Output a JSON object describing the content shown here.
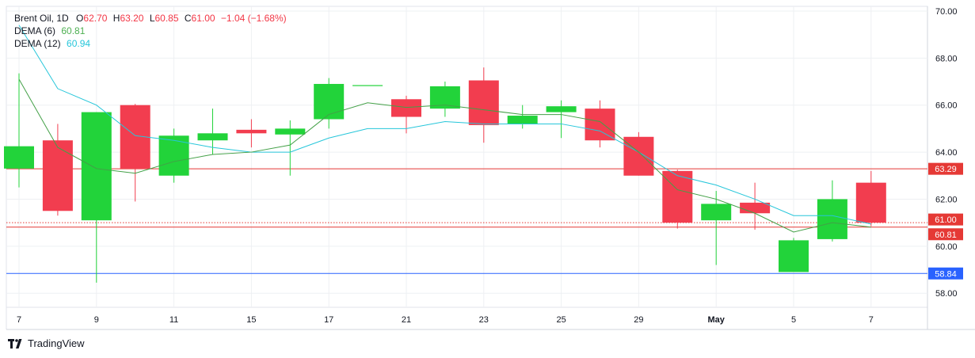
{
  "legend": {
    "symbol": "Brent Oil, 1D",
    "o_label": "O",
    "o_value": "62.70",
    "h_label": "H",
    "h_value": "63.20",
    "l_label": "L",
    "l_value": "60.85",
    "c_label": "C",
    "c_value": "61.00",
    "change": "−1.04 (−1.68%)",
    "dema6_label": "DEMA (6)",
    "dema6_value": "60.81",
    "dema12_label": "DEMA (12)",
    "dema12_value": "60.94"
  },
  "brand": {
    "name": "TradingView",
    "icon": "tradingview-logo-icon"
  },
  "colors": {
    "up": "#22d33a",
    "down": "#f23d4f",
    "dema6": "#43a047",
    "dema12": "#26c6da",
    "grid": "#eef0f3",
    "axis_text": "#131722",
    "hline_red": "#e53935",
    "hline_blue": "#2962ff"
  },
  "chart_data": {
    "type": "candlestick",
    "y_range": [
      57.4,
      70.2
    ],
    "y_ticks": [
      "58.00",
      "60.00",
      "62.00",
      "64.00",
      "66.00",
      "68.00",
      "70.00"
    ],
    "x_ticks": [
      {
        "idx": 0,
        "label": "7"
      },
      {
        "idx": 2,
        "label": "9"
      },
      {
        "idx": 4,
        "label": "11"
      },
      {
        "idx": 6,
        "label": "15"
      },
      {
        "idx": 8,
        "label": "17"
      },
      {
        "idx": 10,
        "label": "21"
      },
      {
        "idx": 12,
        "label": "23"
      },
      {
        "idx": 14,
        "label": "25"
      },
      {
        "idx": 16,
        "label": "29"
      },
      {
        "idx": 18,
        "label": "May"
      },
      {
        "idx": 20,
        "label": "5"
      },
      {
        "idx": 22,
        "label": "7"
      }
    ],
    "candles": [
      {
        "o": 63.3,
        "h": 67.35,
        "l": 62.5,
        "c": 64.25
      },
      {
        "o": 64.5,
        "h": 65.2,
        "l": 61.3,
        "c": 61.5
      },
      {
        "o": 61.1,
        "h": 65.7,
        "l": 58.45,
        "c": 65.7
      },
      {
        "o": 66.0,
        "h": 66.05,
        "l": 61.9,
        "c": 63.3
      },
      {
        "o": 63.0,
        "h": 65.0,
        "l": 62.7,
        "c": 64.7
      },
      {
        "o": 64.5,
        "h": 65.85,
        "l": 63.9,
        "c": 64.8
      },
      {
        "o": 64.95,
        "h": 65.4,
        "l": 64.2,
        "c": 64.8
      },
      {
        "o": 64.75,
        "h": 65.35,
        "l": 63.0,
        "c": 65.0
      },
      {
        "o": 65.4,
        "h": 67.15,
        "l": 65.0,
        "c": 66.9
      },
      {
        "o": 66.85,
        "h": 66.85,
        "l": 66.85,
        "c": 66.85
      },
      {
        "o": 66.25,
        "h": 66.4,
        "l": 64.8,
        "c": 65.5
      },
      {
        "o": 65.85,
        "h": 67.0,
        "l": 65.5,
        "c": 66.8
      },
      {
        "o": 67.05,
        "h": 67.6,
        "l": 64.4,
        "c": 65.15
      },
      {
        "o": 65.2,
        "h": 66.0,
        "l": 65.0,
        "c": 65.55
      },
      {
        "o": 65.7,
        "h": 66.2,
        "l": 64.6,
        "c": 65.95
      },
      {
        "o": 65.85,
        "h": 66.2,
        "l": 64.2,
        "c": 64.5
      },
      {
        "o": 64.65,
        "h": 64.85,
        "l": 63.0,
        "c": 63.0
      },
      {
        "o": 63.2,
        "h": 63.25,
        "l": 60.75,
        "c": 61.0
      },
      {
        "o": 61.1,
        "h": 62.35,
        "l": 59.2,
        "c": 61.8
      },
      {
        "o": 61.85,
        "h": 62.7,
        "l": 60.7,
        "c": 61.4
      },
      {
        "o": 58.9,
        "h": 60.35,
        "l": 58.9,
        "c": 60.25
      },
      {
        "o": 60.3,
        "h": 62.8,
        "l": 60.2,
        "c": 62.0
      },
      {
        "o": 62.7,
        "h": 63.2,
        "l": 60.85,
        "c": 61.0
      }
    ],
    "dema6": [
      67.1,
      64.2,
      63.3,
      63.1,
      63.6,
      63.9,
      64.0,
      64.3,
      65.6,
      66.1,
      65.9,
      66.0,
      65.8,
      65.6,
      65.6,
      65.3,
      64.0,
      62.4,
      62.0,
      61.4,
      60.6,
      61.0,
      60.81
    ],
    "dema12": [
      69.4,
      66.7,
      66.0,
      64.7,
      64.5,
      64.2,
      64.0,
      64.0,
      64.6,
      65.0,
      65.0,
      65.3,
      65.2,
      65.2,
      65.2,
      64.9,
      64.0,
      63.0,
      62.6,
      62.0,
      61.3,
      61.3,
      60.94
    ],
    "hlines": [
      {
        "value": 63.29,
        "label": "63.29",
        "color": "#e53935",
        "style": "solid"
      },
      {
        "value": 61.0,
        "label": "61.00",
        "color": "#e53935",
        "style": "dotted"
      },
      {
        "value": 60.81,
        "label": "60.81",
        "color": "#e53935",
        "style": "solid"
      },
      {
        "value": 58.84,
        "label": "58.84",
        "color": "#2962ff",
        "style": "solid"
      }
    ]
  }
}
